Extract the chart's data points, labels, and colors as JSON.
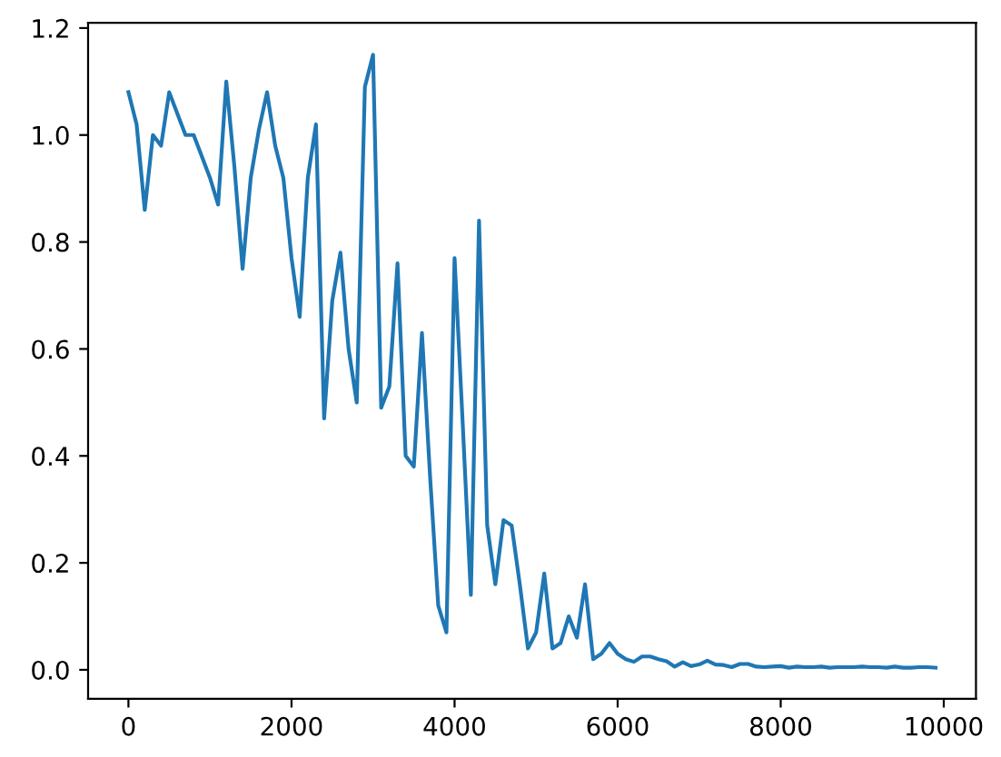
{
  "chart_data": {
    "type": "line",
    "x": [
      0,
      100,
      200,
      300,
      400,
      500,
      600,
      700,
      800,
      900,
      1000,
      1100,
      1200,
      1300,
      1400,
      1500,
      1600,
      1700,
      1800,
      1900,
      2000,
      2100,
      2200,
      2300,
      2400,
      2500,
      2600,
      2700,
      2800,
      2900,
      3000,
      3100,
      3200,
      3300,
      3400,
      3500,
      3600,
      3700,
      3800,
      3900,
      4000,
      4100,
      4200,
      4300,
      4400,
      4500,
      4600,
      4700,
      4800,
      4900,
      5000,
      5100,
      5200,
      5300,
      5400,
      5500,
      5600,
      5700,
      5800,
      5900,
      6000,
      6100,
      6200,
      6300,
      6400,
      6500,
      6600,
      6700,
      6800,
      6900,
      7000,
      7100,
      7200,
      7300,
      7400,
      7500,
      7600,
      7700,
      7800,
      7900,
      8000,
      8100,
      8200,
      8300,
      8400,
      8500,
      8600,
      8700,
      8800,
      8900,
      9000,
      9100,
      9200,
      9300,
      9400,
      9500,
      9600,
      9700,
      9800,
      9900
    ],
    "series": [
      {
        "color": "#1f77b4",
        "values": [
          1.08,
          1.02,
          0.86,
          1.0,
          0.98,
          1.08,
          1.04,
          1.0,
          1.0,
          0.96,
          0.92,
          0.87,
          1.1,
          0.94,
          0.75,
          0.92,
          1.01,
          1.08,
          0.98,
          0.92,
          0.77,
          0.66,
          0.92,
          1.02,
          0.47,
          0.69,
          0.78,
          0.6,
          0.5,
          1.09,
          1.15,
          0.49,
          0.53,
          0.76,
          0.4,
          0.38,
          0.63,
          0.36,
          0.12,
          0.07,
          0.77,
          0.46,
          0.14,
          0.84,
          0.27,
          0.16,
          0.28,
          0.27,
          0.16,
          0.04,
          0.07,
          0.18,
          0.04,
          0.05,
          0.1,
          0.06,
          0.16,
          0.02,
          0.03,
          0.05,
          0.03,
          0.02,
          0.015,
          0.025,
          0.025,
          0.02,
          0.016,
          0.006,
          0.014,
          0.007,
          0.01,
          0.017,
          0.01,
          0.009,
          0.005,
          0.011,
          0.011,
          0.006,
          0.005,
          0.006,
          0.007,
          0.004,
          0.006,
          0.005,
          0.005,
          0.006,
          0.004,
          0.005,
          0.005,
          0.005,
          0.006,
          0.005,
          0.005,
          0.004,
          0.006,
          0.004,
          0.004,
          0.005,
          0.005,
          0.004
        ]
      }
    ],
    "xlim": [
      -495,
      10395
    ],
    "ylim": [
      -0.054,
      1.21
    ],
    "xticks": [
      0,
      2000,
      4000,
      6000,
      8000,
      10000
    ],
    "yticks": [
      {
        "value": 0,
        "label": "0.0"
      },
      {
        "value": 0.2,
        "label": "0.2"
      },
      {
        "value": 0.4,
        "label": "0.4"
      },
      {
        "value": 0.6,
        "label": "0.6"
      },
      {
        "value": 0.8,
        "label": "0.8"
      },
      {
        "value": 1.0,
        "label": "1.0"
      },
      {
        "value": 1.2,
        "label": "1.2"
      }
    ]
  }
}
